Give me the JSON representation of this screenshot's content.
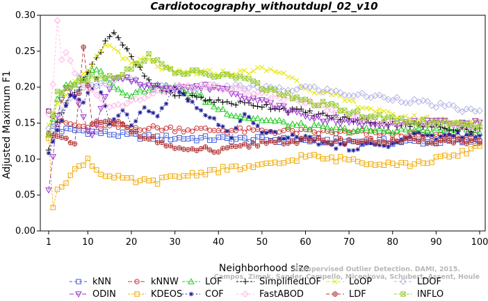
{
  "chart_data": {
    "type": "line",
    "title": "Cardiotocography_withoutdupl_02_v10",
    "xlabel": "Neighborhood size",
    "ylabel": "Adjusted Maximum F1",
    "xlim": [
      1,
      100
    ],
    "ylim": [
      0.0,
      0.3
    ],
    "x_ticks": [
      "1",
      "10",
      "20",
      "30",
      "40",
      "50",
      "60",
      "70",
      "80",
      "90",
      "100"
    ],
    "y_ticks": [
      "0.00",
      "0.05",
      "0.10",
      "0.15",
      "0.20",
      "0.25",
      "0.30"
    ],
    "grid": false,
    "legend_position": "bottom",
    "watermark_line1": "Unsupervised Outlier Detection. DAMI, 2015.",
    "watermark_line2": "Campos, Zimek, Sander, Campello, Micenkova, Schubert, Assent, Houle",
    "series": [
      {
        "name": "kNN",
        "color": "#3b5bdb",
        "marker": "square",
        "dash": "4,3",
        "anchors": [
          [
            1,
            0.165
          ],
          [
            2,
            0.145
          ],
          [
            4,
            0.14
          ],
          [
            8,
            0.14
          ],
          [
            15,
            0.135
          ],
          [
            25,
            0.13
          ],
          [
            40,
            0.128
          ],
          [
            60,
            0.126
          ],
          [
            80,
            0.124
          ],
          [
            100,
            0.124
          ]
        ]
      },
      {
        "name": "kNNW",
        "color": "#cc3333",
        "marker": "circle",
        "dash": "6,3",
        "anchors": [
          [
            1,
            0.17
          ],
          [
            3,
            0.15
          ],
          [
            5,
            0.15
          ],
          [
            8,
            0.145
          ],
          [
            15,
            0.145
          ],
          [
            25,
            0.143
          ],
          [
            40,
            0.14
          ],
          [
            60,
            0.138
          ],
          [
            80,
            0.135
          ],
          [
            100,
            0.13
          ]
        ]
      },
      {
        "name": "LOF",
        "color": "#22cc22",
        "marker": "triangle-up",
        "dash": "4,2",
        "anchors": [
          [
            1,
            0.135
          ],
          [
            3,
            0.18
          ],
          [
            5,
            0.2
          ],
          [
            8,
            0.21
          ],
          [
            10,
            0.22
          ],
          [
            13,
            0.225
          ],
          [
            16,
            0.2
          ],
          [
            20,
            0.19
          ],
          [
            25,
            0.2
          ],
          [
            30,
            0.2
          ],
          [
            35,
            0.19
          ],
          [
            40,
            0.17
          ],
          [
            45,
            0.16
          ],
          [
            50,
            0.155
          ],
          [
            55,
            0.15
          ],
          [
            60,
            0.145
          ],
          [
            70,
            0.14
          ],
          [
            80,
            0.14
          ],
          [
            90,
            0.14
          ],
          [
            100,
            0.14
          ]
        ]
      },
      {
        "name": "SimplifiedLOF",
        "color": "#000000",
        "marker": "plus",
        "dash": "3,2",
        "anchors": [
          [
            1,
            0.11
          ],
          [
            3,
            0.155
          ],
          [
            5,
            0.18
          ],
          [
            8,
            0.2
          ],
          [
            10,
            0.22
          ],
          [
            12,
            0.24
          ],
          [
            14,
            0.265
          ],
          [
            16,
            0.278
          ],
          [
            18,
            0.26
          ],
          [
            20,
            0.24
          ],
          [
            25,
            0.2
          ],
          [
            30,
            0.19
          ],
          [
            35,
            0.185
          ],
          [
            40,
            0.18
          ],
          [
            50,
            0.175
          ],
          [
            60,
            0.165
          ],
          [
            70,
            0.155
          ],
          [
            80,
            0.15
          ],
          [
            90,
            0.145
          ],
          [
            100,
            0.14
          ]
        ]
      },
      {
        "name": "LoOP",
        "color": "#e6e600",
        "marker": "x",
        "dash": "5,3",
        "anchors": [
          [
            1,
            0.15
          ],
          [
            3,
            0.175
          ],
          [
            6,
            0.2
          ],
          [
            10,
            0.22
          ],
          [
            14,
            0.26
          ],
          [
            17,
            0.25
          ],
          [
            20,
            0.23
          ],
          [
            23,
            0.24
          ],
          [
            26,
            0.23
          ],
          [
            30,
            0.22
          ],
          [
            35,
            0.22
          ],
          [
            40,
            0.22
          ],
          [
            45,
            0.22
          ],
          [
            50,
            0.225
          ],
          [
            55,
            0.22
          ],
          [
            60,
            0.2
          ],
          [
            70,
            0.18
          ],
          [
            80,
            0.16
          ],
          [
            90,
            0.155
          ],
          [
            100,
            0.15
          ]
        ]
      },
      {
        "name": "LDOF",
        "color": "#b3b3e6",
        "marker": "diamond",
        "dash": "4,3",
        "anchors": [
          [
            1,
            0.14
          ],
          [
            3,
            0.15
          ],
          [
            5,
            0.18
          ],
          [
            8,
            0.2
          ],
          [
            12,
            0.2
          ],
          [
            16,
            0.21
          ],
          [
            20,
            0.21
          ],
          [
            25,
            0.2
          ],
          [
            30,
            0.2
          ],
          [
            35,
            0.2
          ],
          [
            40,
            0.2
          ],
          [
            45,
            0.2
          ],
          [
            50,
            0.2
          ],
          [
            55,
            0.195
          ],
          [
            60,
            0.2
          ],
          [
            65,
            0.195
          ],
          [
            70,
            0.19
          ],
          [
            80,
            0.185
          ],
          [
            90,
            0.175
          ],
          [
            100,
            0.165
          ]
        ]
      },
      {
        "name": "ODIN",
        "color": "#9933cc",
        "marker": "triangle-down",
        "dash": "6,3",
        "anchors": [
          [
            1,
            0.06
          ],
          [
            2,
            0.1
          ],
          [
            3,
            0.16
          ],
          [
            5,
            0.2
          ],
          [
            7,
            0.19
          ],
          [
            9,
            0.155
          ],
          [
            11,
            0.13
          ],
          [
            13,
            0.17
          ],
          [
            16,
            0.21
          ],
          [
            20,
            0.21
          ],
          [
            25,
            0.2
          ],
          [
            30,
            0.2
          ],
          [
            35,
            0.2
          ],
          [
            40,
            0.2
          ],
          [
            50,
            0.18
          ],
          [
            60,
            0.16
          ],
          [
            70,
            0.15
          ],
          [
            80,
            0.15
          ],
          [
            90,
            0.15
          ],
          [
            100,
            0.15
          ]
        ]
      },
      {
        "name": "KDEOS",
        "color": "#f0a800",
        "marker": "square",
        "dash": "3,2",
        "anchors": [
          [
            1,
            0.125
          ],
          [
            2,
            0.035
          ],
          [
            3,
            0.06
          ],
          [
            5,
            0.07
          ],
          [
            8,
            0.09
          ],
          [
            10,
            0.1
          ],
          [
            12,
            0.085
          ],
          [
            15,
            0.075
          ],
          [
            20,
            0.07
          ],
          [
            25,
            0.068
          ],
          [
            30,
            0.075
          ],
          [
            35,
            0.08
          ],
          [
            40,
            0.085
          ],
          [
            45,
            0.088
          ],
          [
            50,
            0.09
          ],
          [
            55,
            0.095
          ],
          [
            60,
            0.105
          ],
          [
            65,
            0.1
          ],
          [
            70,
            0.1
          ],
          [
            75,
            0.095
          ],
          [
            80,
            0.095
          ],
          [
            85,
            0.092
          ],
          [
            90,
            0.1
          ],
          [
            95,
            0.105
          ],
          [
            100,
            0.12
          ]
        ]
      },
      {
        "name": "COF",
        "color": "#1a1a99",
        "marker": "asterisk",
        "dash": "2,3",
        "anchors": [
          [
            1,
            0.11
          ],
          [
            3,
            0.14
          ],
          [
            6,
            0.19
          ],
          [
            9,
            0.18
          ],
          [
            12,
            0.21
          ],
          [
            15,
            0.15
          ],
          [
            18,
            0.17
          ],
          [
            20,
            0.15
          ],
          [
            23,
            0.17
          ],
          [
            26,
            0.16
          ],
          [
            30,
            0.2
          ],
          [
            35,
            0.17
          ],
          [
            40,
            0.15
          ],
          [
            43,
            0.13
          ],
          [
            46,
            0.16
          ],
          [
            50,
            0.14
          ],
          [
            55,
            0.13
          ],
          [
            60,
            0.13
          ],
          [
            65,
            0.12
          ],
          [
            70,
            0.115
          ],
          [
            75,
            0.12
          ],
          [
            80,
            0.12
          ],
          [
            85,
            0.135
          ],
          [
            90,
            0.13
          ],
          [
            95,
            0.135
          ],
          [
            100,
            0.13
          ]
        ]
      },
      {
        "name": "FastABOD",
        "color": "#ffb3e6",
        "marker": "diamond",
        "dash": "3,3",
        "anchors": [
          [
            1,
            0.16
          ],
          [
            2,
            0.2
          ],
          [
            3,
            0.29
          ],
          [
            4,
            0.24
          ],
          [
            5,
            0.25
          ],
          [
            7,
            0.22
          ],
          [
            10,
            0.2
          ],
          [
            15,
            0.17
          ],
          [
            20,
            0.18
          ],
          [
            25,
            0.19
          ],
          [
            30,
            0.2
          ],
          [
            40,
            0.2
          ],
          [
            50,
            0.19
          ],
          [
            60,
            0.18
          ],
          [
            70,
            0.16
          ],
          [
            80,
            0.15
          ],
          [
            90,
            0.15
          ],
          [
            100,
            0.145
          ]
        ]
      },
      {
        "name": "LDF",
        "color": "#b33333",
        "marker": "circle-plus",
        "dash": "5,3",
        "anchors": [
          [
            1,
            0.14
          ],
          [
            3,
            0.13
          ],
          [
            5,
            0.125
          ],
          [
            7,
            0.12
          ],
          [
            9,
            0.255
          ],
          [
            11,
            0.15
          ],
          [
            14,
            0.15
          ],
          [
            17,
            0.15
          ],
          [
            20,
            0.14
          ],
          [
            24,
            0.13
          ],
          [
            28,
            0.12
          ],
          [
            32,
            0.11
          ],
          [
            36,
            0.115
          ],
          [
            40,
            0.11
          ],
          [
            44,
            0.115
          ],
          [
            48,
            0.12
          ],
          [
            52,
            0.125
          ],
          [
            56,
            0.125
          ],
          [
            60,
            0.125
          ],
          [
            70,
            0.125
          ],
          [
            80,
            0.125
          ],
          [
            90,
            0.125
          ],
          [
            100,
            0.125
          ]
        ]
      },
      {
        "name": "INFLO",
        "color": "#99cc33",
        "marker": "star-box",
        "dash": "4,2",
        "anchors": [
          [
            1,
            0.135
          ],
          [
            3,
            0.19
          ],
          [
            5,
            0.2
          ],
          [
            8,
            0.21
          ],
          [
            12,
            0.215
          ],
          [
            16,
            0.215
          ],
          [
            20,
            0.225
          ],
          [
            24,
            0.245
          ],
          [
            28,
            0.225
          ],
          [
            32,
            0.22
          ],
          [
            36,
            0.22
          ],
          [
            40,
            0.215
          ],
          [
            45,
            0.215
          ],
          [
            50,
            0.2
          ],
          [
            55,
            0.19
          ],
          [
            60,
            0.18
          ],
          [
            65,
            0.175
          ],
          [
            70,
            0.165
          ],
          [
            80,
            0.155
          ],
          [
            90,
            0.15
          ],
          [
            100,
            0.145
          ]
        ]
      }
    ]
  }
}
